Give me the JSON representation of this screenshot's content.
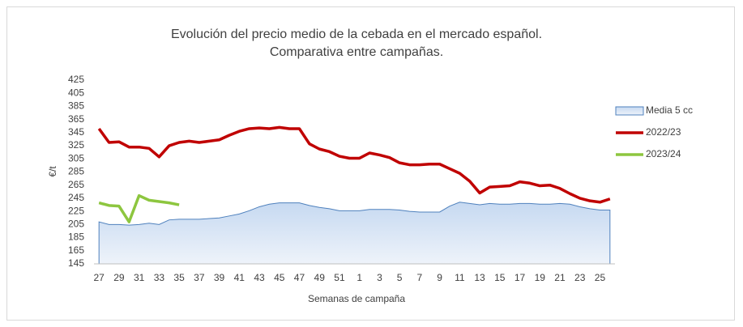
{
  "chart_data": {
    "type": "line",
    "title": [
      "Evolución del precio medio de la cebada en el mercado español.",
      "Comparativa entre campañas."
    ],
    "x_label": "Semanas de campaña",
    "y_label": "€/t",
    "categories": [
      "27",
      null,
      "29",
      null,
      "31",
      null,
      "33",
      null,
      "35",
      null,
      "37",
      null,
      "39",
      null,
      "41",
      null,
      "43",
      null,
      "45",
      null,
      "47",
      null,
      "49",
      null,
      "51",
      null,
      "1",
      null,
      "3",
      null,
      "5",
      null,
      "7",
      null,
      "9",
      null,
      "11",
      null,
      "13",
      null,
      "15",
      null,
      "17",
      null,
      "19",
      null,
      "21",
      null,
      "23",
      null,
      "25",
      null
    ],
    "ylim": [
      145,
      425
    ],
    "yticks": [
      145,
      165,
      185,
      205,
      225,
      245,
      265,
      285,
      305,
      325,
      345,
      365,
      385,
      405,
      425
    ],
    "legend": "right",
    "series": [
      {
        "name": "Media 5 cc",
        "type": "area",
        "color": "#4f81bd",
        "values": [
          209,
          205,
          205,
          204,
          205,
          207,
          205,
          212,
          213,
          213,
          213,
          214,
          215,
          218,
          221,
          226,
          232,
          236,
          238,
          238,
          238,
          234,
          231,
          229,
          226,
          226,
          226,
          228,
          228,
          228,
          227,
          225,
          224,
          224,
          224,
          233,
          239,
          237,
          235,
          237,
          236,
          236,
          237,
          237,
          236,
          236,
          237,
          236,
          232,
          229,
          227,
          227
        ]
      },
      {
        "name": "2022/23",
        "type": "line",
        "color": "#c00000",
        "values": [
          351,
          330,
          331,
          323,
          323,
          321,
          308,
          325,
          330,
          332,
          330,
          332,
          334,
          341,
          347,
          351,
          352,
          351,
          353,
          351,
          351,
          328,
          320,
          316,
          309,
          306,
          306,
          314,
          311,
          307,
          299,
          296,
          296,
          297,
          297,
          290,
          283,
          271,
          253,
          262,
          263,
          264,
          270,
          268,
          264,
          265,
          260,
          252,
          245,
          241,
          239,
          244
        ]
      },
      {
        "name": "2023/24",
        "type": "line",
        "color": "#8dc63f",
        "values": [
          238,
          234,
          233,
          209,
          249,
          242,
          240,
          238,
          235,
          null,
          null,
          null,
          null,
          null,
          null,
          null,
          null,
          null,
          null,
          null,
          null,
          null,
          null,
          null,
          null,
          null,
          null,
          null,
          null,
          null,
          null,
          null,
          null,
          null,
          null,
          null,
          null,
          null,
          null,
          null,
          null,
          null,
          null,
          null,
          null,
          null,
          null,
          null,
          null,
          null,
          null,
          null
        ]
      }
    ]
  }
}
